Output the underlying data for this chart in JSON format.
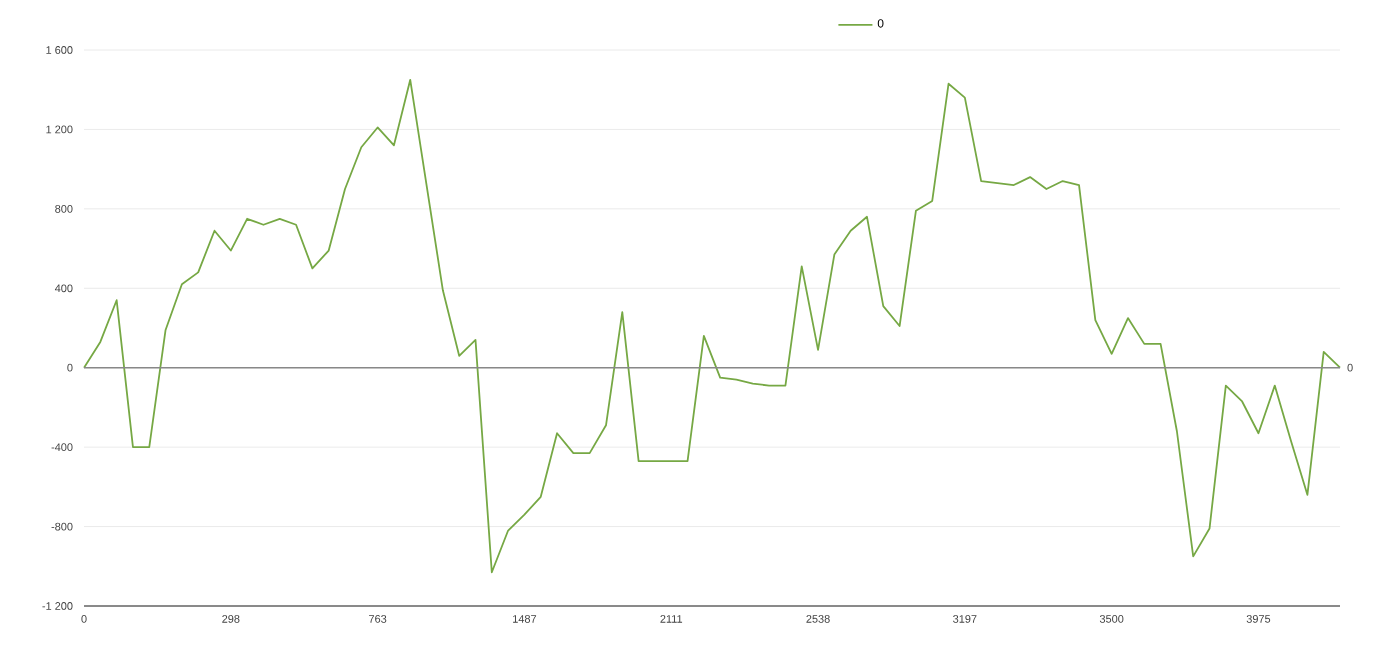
{
  "chart_data": {
    "type": "line",
    "categories": [
      "0",
      null,
      null,
      null,
      null,
      null,
      null,
      null,
      null,
      "298",
      null,
      null,
      null,
      null,
      null,
      null,
      null,
      null,
      "763",
      null,
      null,
      null,
      null,
      null,
      null,
      null,
      null,
      "1487",
      null,
      null,
      null,
      null,
      null,
      null,
      null,
      null,
      "2111",
      null,
      null,
      null,
      null,
      null,
      null,
      null,
      null,
      "2538",
      null,
      null,
      null,
      null,
      null,
      null,
      null,
      null,
      "3197",
      null,
      null,
      null,
      null,
      null,
      null,
      null,
      null,
      "3500",
      null,
      null,
      null,
      null,
      null,
      null,
      null,
      null,
      "3975",
      null,
      null,
      null,
      null,
      null
    ],
    "series": [
      {
        "name": "0",
        "color": "#76a844",
        "values": [
          0,
          130,
          340,
          -400,
          -400,
          190,
          420,
          480,
          690,
          590,
          750,
          720,
          750,
          720,
          500,
          590,
          900,
          1110,
          1210,
          1120,
          1450,
          920,
          390,
          60,
          140,
          -1030,
          -820,
          -740,
          -650,
          -330,
          -430,
          -430,
          -290,
          280,
          -470,
          -470,
          -470,
          -470,
          160,
          -50,
          -60,
          -80,
          -90,
          -90,
          510,
          90,
          570,
          690,
          760,
          310,
          210,
          790,
          840,
          1430,
          1360,
          940,
          930,
          920,
          960,
          900,
          940,
          920,
          240,
          70,
          250,
          120,
          120,
          -320,
          -950,
          -810,
          -90,
          -170,
          -330,
          -90,
          -370,
          -640,
          80,
          0
        ]
      }
    ],
    "ylim": [
      -1200,
      1600
    ],
    "yticks": [
      {
        "value": -1200,
        "label": "-1 200"
      },
      {
        "value": -800,
        "label": "-800"
      },
      {
        "value": -400,
        "label": "-400"
      },
      0,
      400,
      800,
      {
        "value": 1200,
        "label": "1 200"
      },
      {
        "value": 1600,
        "label": "1 600"
      }
    ],
    "grid": "y",
    "legend": "top",
    "marker": "none",
    "line_style": "solid",
    "ref_lines": [
      {
        "axis": "y",
        "value": 0,
        "label": "0",
        "color": "#888888"
      }
    ]
  }
}
